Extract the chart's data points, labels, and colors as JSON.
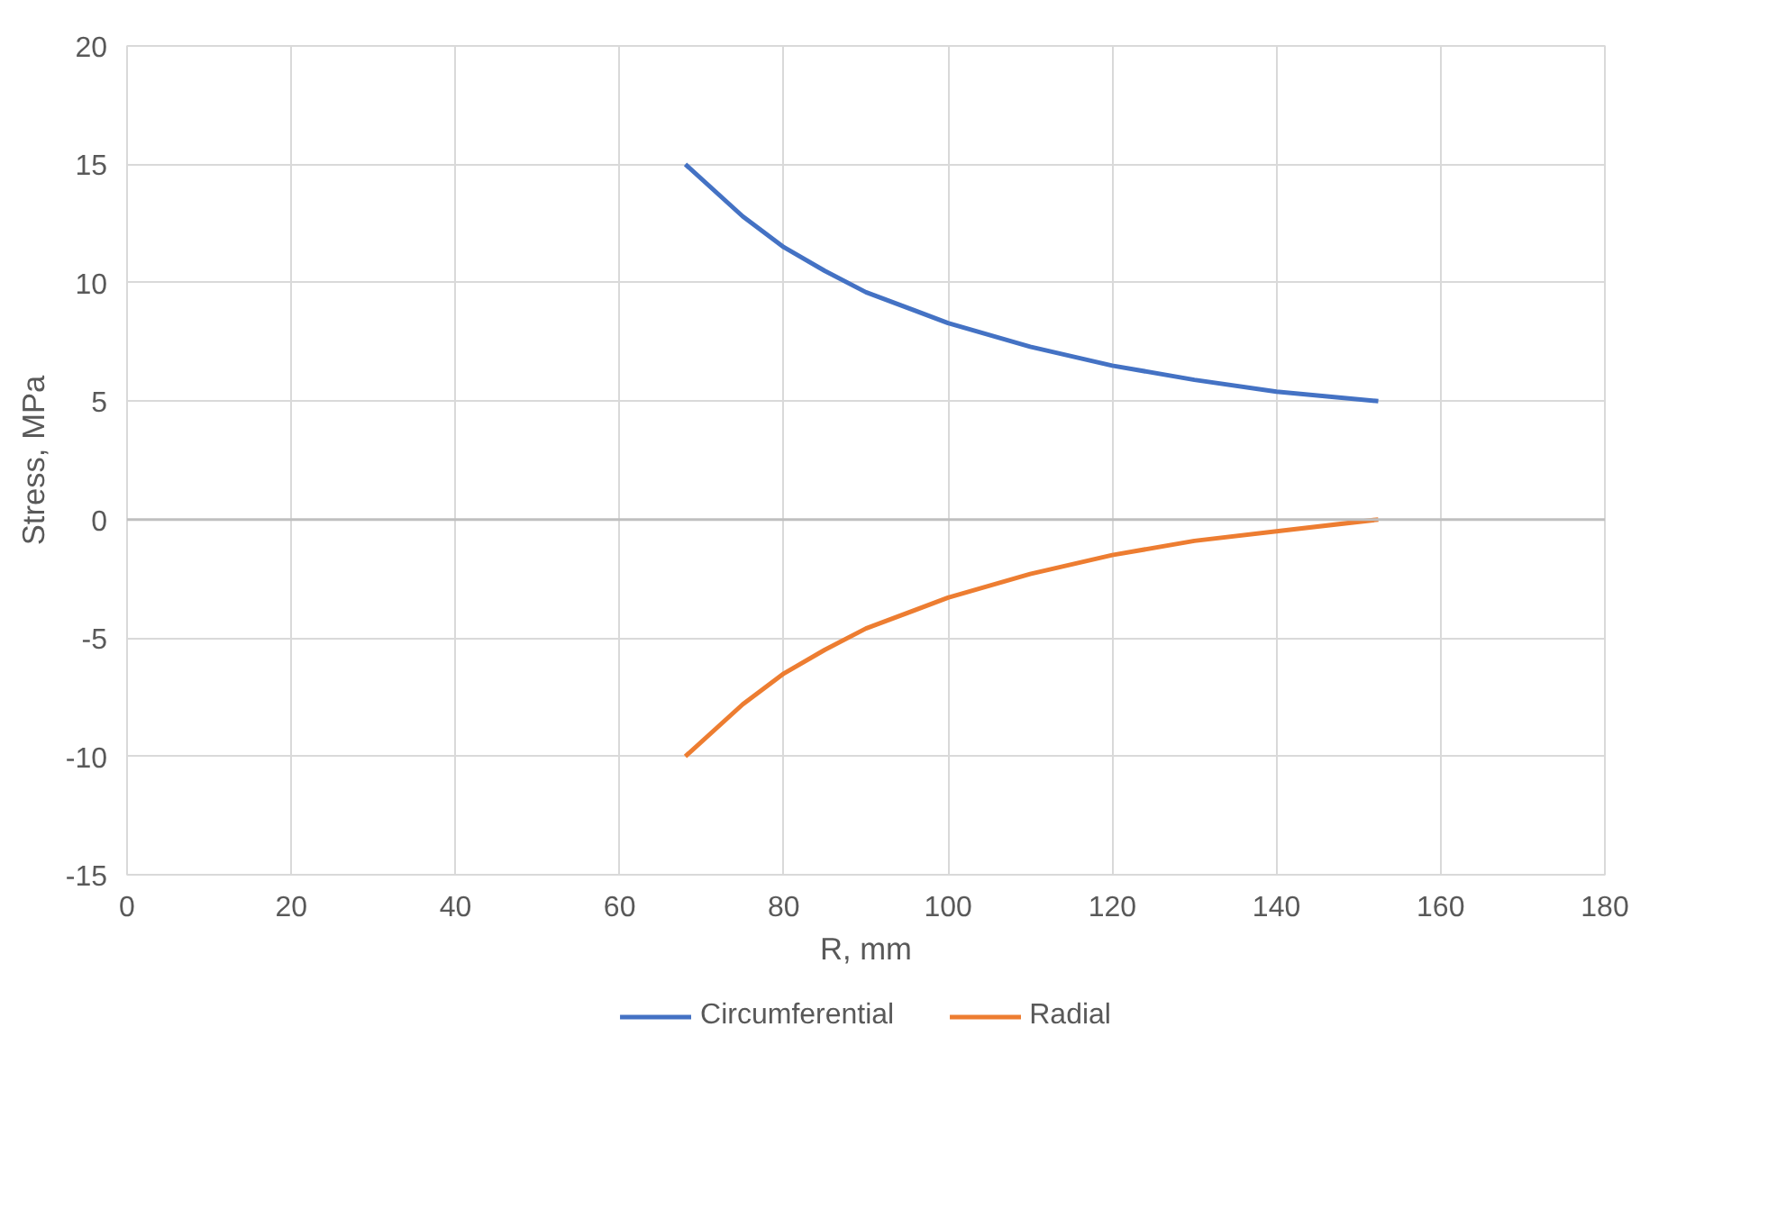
{
  "chart_data": {
    "type": "line",
    "xlabel": "R, mm",
    "ylabel": "Stress, MPa",
    "x": [
      68,
      75,
      80,
      85,
      90,
      100,
      110,
      120,
      130,
      140,
      152.4
    ],
    "series": [
      {
        "name": "Circumferential",
        "color": "#4472c4",
        "values": [
          15.0,
          12.8,
          11.5,
          10.5,
          9.6,
          8.3,
          7.3,
          6.5,
          5.9,
          5.4,
          5.0
        ]
      },
      {
        "name": "Radial",
        "color": "#ed7d31",
        "values": [
          -10.0,
          -7.8,
          -6.5,
          -5.5,
          -4.6,
          -3.3,
          -2.3,
          -1.5,
          -0.9,
          -0.5,
          0.0
        ]
      }
    ],
    "xlim": [
      0,
      180
    ],
    "xticks": [
      0,
      20,
      40,
      60,
      80,
      100,
      120,
      140,
      160,
      180
    ],
    "ylim": [
      -15,
      20
    ],
    "yticks": [
      -15,
      -10,
      -5,
      0,
      5,
      10,
      15,
      20
    ],
    "ref_lines": [
      {
        "axis": "y",
        "value": 0,
        "color": "#bfbfbf"
      }
    ],
    "grid": true,
    "legend": "bottom",
    "marker": "none",
    "line_style": "solid"
  }
}
